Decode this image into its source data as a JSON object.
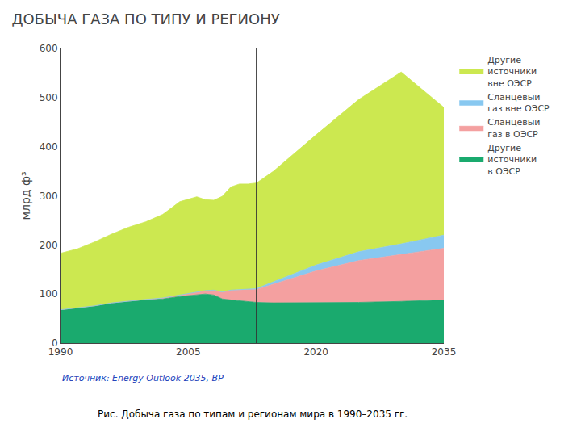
{
  "chart_data": {
    "type": "area",
    "stacked": true,
    "title": "ДОБЫЧА ГАЗА ПО ТИПУ И РЕГИОНУ",
    "ylabel": "млрд ф³",
    "source": "Источник: Energy Outlook 2035, BP",
    "caption": "Рис. Добыча газа по типам и регионам мира в 1990–2035 гг.",
    "x": [
      1990,
      1992,
      1994,
      1996,
      1998,
      2000,
      2002,
      2004,
      2006,
      2007,
      2008,
      2009,
      2010,
      2011,
      2012,
      2013,
      2015,
      2020,
      2025,
      2030,
      2035
    ],
    "series": [
      {
        "name": "Другие\nисточники\nв ОЭСР",
        "color": "#1aaa6e",
        "values": [
          68,
          72,
          76,
          82,
          86,
          88,
          90,
          95,
          98,
          100,
          98,
          90,
          88,
          86,
          84,
          83,
          82,
          82,
          83,
          85,
          88
        ]
      },
      {
        "name": "Сланцевый\nгаз в ОЭСР",
        "color": "#f4a0a0",
        "values": [
          0,
          0,
          0,
          0,
          0,
          1,
          2,
          3,
          5,
          7,
          10,
          14,
          20,
          22,
          24,
          26,
          38,
          65,
          85,
          95,
          105
        ]
      },
      {
        "name": "Сланцевый\nгаз вне ОЭСР",
        "color": "#88c8f0",
        "values": [
          0,
          0,
          0,
          0,
          0,
          0,
          0,
          0,
          0,
          0,
          0,
          0,
          0,
          1,
          1,
          2,
          5,
          12,
          18,
          22,
          27
        ]
      },
      {
        "name": "Другие\nисточники\nвне ОЭСР",
        "color": "#cce850",
        "values": [
          115,
          120,
          130,
          140,
          150,
          158,
          170,
          190,
          195,
          185,
          183,
          195,
          210,
          215,
          215,
          215,
          225,
          265,
          310,
          350,
          260
        ]
      }
    ],
    "vertical_line_x": 2013,
    "xlim": [
      1990,
      2035
    ],
    "xticks": [
      1990,
      2005,
      2020,
      2035
    ],
    "ylim": [
      0,
      600
    ],
    "yticks": [
      0,
      100,
      200,
      300,
      400,
      500,
      600
    ],
    "grid": false,
    "legend": "right"
  }
}
